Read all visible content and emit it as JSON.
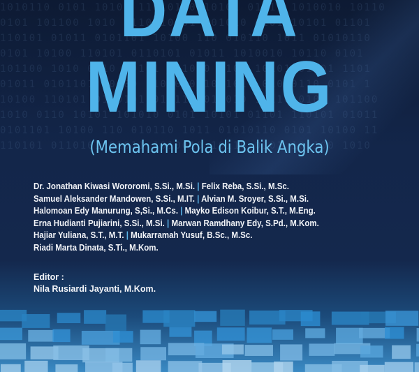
{
  "cover": {
    "title_line1": "DATA",
    "title_line2": "MINING",
    "subtitle": "(Memahami Pola di Balik Angka)",
    "authors": [
      [
        "Dr. Jonathan Kiwasi Wororomi, S.Si., M.Si.",
        "Felix Reba, S.Si., M.Sc."
      ],
      [
        "Samuel Aleksander Mandowen, S.Si., M.IT.",
        "Alvian M. Sroyer, S.Si., M.Si."
      ],
      [
        "Halomoan Edy Manurung, S,Si., M.Cs.",
        "Mayko Edison Koibur, S.T., M.Eng."
      ],
      [
        "Erna Hudianti Pujiarini, S.Si., M.Si.",
        "Marwan Ramdhany Edy, S.Pd., M.Kom."
      ],
      [
        "Hajiar Yuliana, S.T., M.T.",
        "Mukarramah Yusuf, B.Sc., M.Sc."
      ],
      [
        "Riadi Marta Dinata, S.Ti., M.Kom."
      ]
    ],
    "separator": "|",
    "editor_label": "Editor :",
    "editor_name": "Nila Rusiardi Jayanti, M.Kom.",
    "colors": {
      "title": "#4fb4ea",
      "background": "#13264a",
      "text": "#f2f4f8"
    }
  }
}
